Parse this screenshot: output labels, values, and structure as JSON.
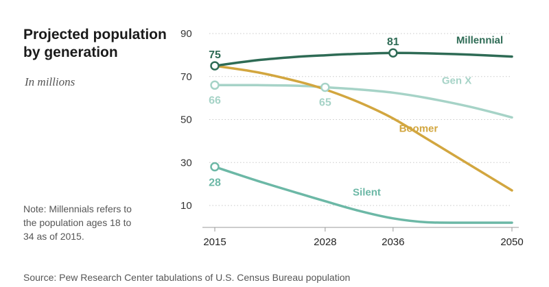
{
  "title": "Projected population by generation",
  "subtitle": "In millions",
  "note": "Note: Millennials refers to the population ages 18 to 34 as of 2015.",
  "source": "Source: Pew Research Center tabulations of U.S. Census Bureau population",
  "chart_data": {
    "type": "line",
    "title": "Projected population by generation",
    "subtitle": "In millions",
    "x_ticks": [
      2015,
      2028,
      2036,
      2050
    ],
    "y_ticks": [
      10,
      30,
      50,
      70,
      90
    ],
    "xlim": [
      2015,
      2050
    ],
    "ylim": [
      2,
      90
    ],
    "grid": "horizontal dotted",
    "series": [
      {
        "name": "Millennial",
        "color": "#2e6b55",
        "x": [
          2015,
          2020,
          2025,
          2028,
          2030,
          2033,
          2036,
          2040,
          2045,
          2050
        ],
        "y": [
          75,
          77.6,
          79.3,
          79.9,
          80.3,
          80.7,
          81,
          80.8,
          80.2,
          79.3
        ],
        "labels": [
          {
            "x": 2015,
            "y": 75,
            "text": "75"
          },
          {
            "x": 2036,
            "y": 81,
            "text": "81"
          }
        ],
        "markers": [
          2015,
          2036
        ]
      },
      {
        "name": "Gen X",
        "color": "#a6d3c7",
        "x": [
          2015,
          2020,
          2025,
          2028,
          2032,
          2036,
          2040,
          2045,
          2050
        ],
        "y": [
          66,
          66,
          65.7,
          65,
          64,
          62.5,
          60,
          56,
          51
        ],
        "labels": [
          {
            "x": 2015,
            "y": 66,
            "text": "66"
          },
          {
            "x": 2028,
            "y": 65,
            "text": "65"
          }
        ],
        "markers": [
          2015,
          2028
        ]
      },
      {
        "name": "Boomer",
        "color": "#d2a63f",
        "x": [
          2015,
          2020,
          2025,
          2028,
          2032,
          2036,
          2040,
          2045,
          2050
        ],
        "y": [
          75,
          72,
          67.5,
          64,
          58,
          50.5,
          41,
          29,
          17
        ],
        "labels": [],
        "markers": []
      },
      {
        "name": "Silent",
        "color": "#6cb8a6",
        "x": [
          2015,
          2020,
          2025,
          2028,
          2032,
          2036,
          2040,
          2045,
          2050
        ],
        "y": [
          28,
          21.5,
          15.5,
          12,
          7.5,
          4,
          2.2,
          2,
          2
        ],
        "labels": [
          {
            "x": 2015,
            "y": 28,
            "text": "28"
          }
        ],
        "markers": [
          2015
        ]
      }
    ]
  }
}
